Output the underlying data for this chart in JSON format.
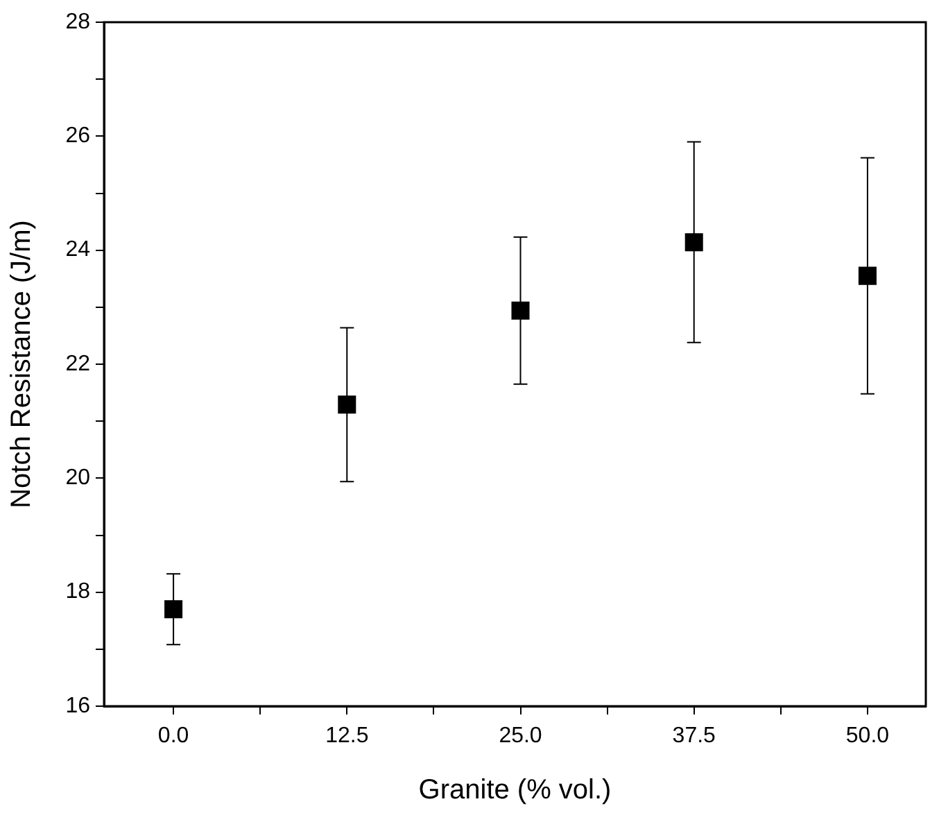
{
  "chart_data": {
    "type": "scatter",
    "xlabel": "Granite (% vol.)",
    "ylabel": "Notch Resistance (J/m)",
    "x": [
      0,
      12.5,
      25,
      37.5,
      50
    ],
    "values": [
      17.7,
      21.29,
      22.94,
      24.14,
      23.55
    ],
    "errors": [
      0.62,
      1.35,
      1.29,
      1.76,
      2.07
    ],
    "color": "#000000",
    "marker": "square",
    "grid": false,
    "legend": false,
    "xlim": [
      -5,
      54.2
    ],
    "xticks": [
      {
        "value": 0,
        "label": "0.0"
      },
      {
        "value": 6.25,
        "label": null
      },
      {
        "value": 12.5,
        "label": "12.5"
      },
      {
        "value": 18.75,
        "label": null
      },
      {
        "value": 25,
        "label": "25.0"
      },
      {
        "value": 31.25,
        "label": null
      },
      {
        "value": 37.5,
        "label": "37.5"
      },
      {
        "value": 43.75,
        "label": null
      },
      {
        "value": 50,
        "label": "50.0"
      }
    ],
    "ylim": [
      16,
      28
    ],
    "yticks": [
      16,
      {
        "value": 17,
        "label": null
      },
      18,
      {
        "value": 19,
        "label": null
      },
      20,
      {
        "value": 21,
        "label": null
      },
      22,
      {
        "value": 23,
        "label": null
      },
      24,
      {
        "value": 25,
        "label": null
      },
      26,
      {
        "value": 27,
        "label": null
      },
      28
    ]
  }
}
